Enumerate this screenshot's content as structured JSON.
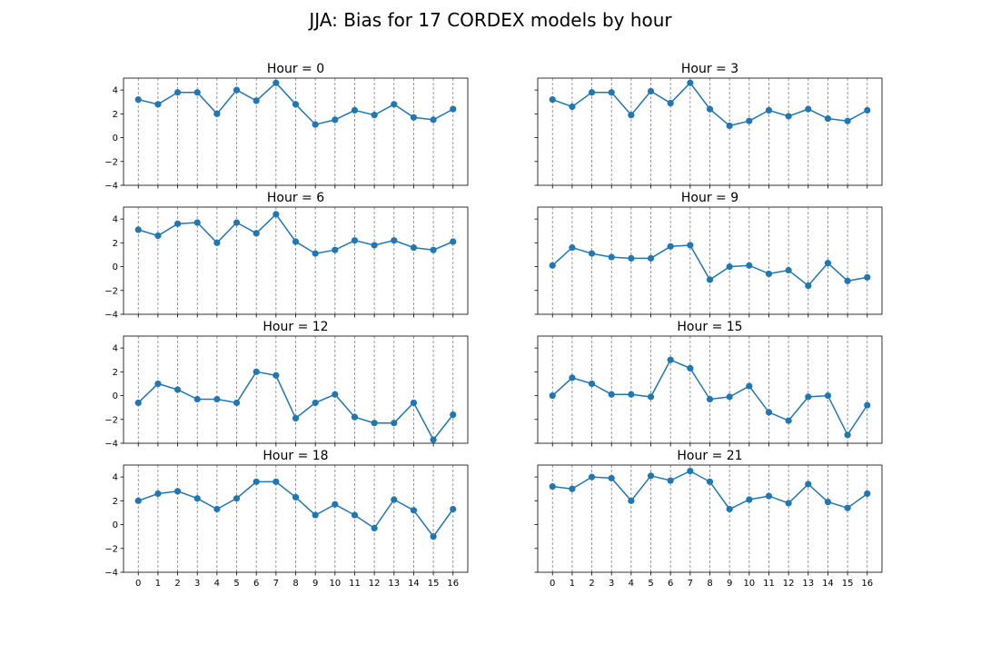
{
  "figure": {
    "title": "JJA: Bias for 17 CORDEX models by hour"
  },
  "chart_data": [
    {
      "type": "line",
      "title": "Hour = 0",
      "x": [
        0,
        1,
        2,
        3,
        4,
        5,
        6,
        7,
        8,
        9,
        10,
        11,
        12,
        13,
        14,
        15,
        16
      ],
      "y": [
        3.2,
        2.8,
        3.8,
        3.8,
        2.0,
        4.0,
        3.1,
        4.6,
        2.8,
        1.1,
        1.5,
        2.3,
        1.9,
        2.8,
        1.7,
        1.5,
        2.4
      ],
      "ylim": [
        -4,
        5
      ],
      "yticks": [
        -4,
        -2,
        0,
        2,
        4
      ],
      "grid": "x",
      "color": "#1f77b4"
    },
    {
      "type": "line",
      "title": "Hour = 3",
      "x": [
        0,
        1,
        2,
        3,
        4,
        5,
        6,
        7,
        8,
        9,
        10,
        11,
        12,
        13,
        14,
        15,
        16
      ],
      "y": [
        3.2,
        2.6,
        3.8,
        3.8,
        1.9,
        3.9,
        2.9,
        4.6,
        2.4,
        1.0,
        1.4,
        2.3,
        1.8,
        2.4,
        1.6,
        1.4,
        2.3
      ],
      "ylim": [
        -4,
        5
      ],
      "yticks": [
        -4,
        -2,
        0,
        2,
        4
      ],
      "grid": "x",
      "color": "#1f77b4"
    },
    {
      "type": "line",
      "title": "Hour = 6",
      "x": [
        0,
        1,
        2,
        3,
        4,
        5,
        6,
        7,
        8,
        9,
        10,
        11,
        12,
        13,
        14,
        15,
        16
      ],
      "y": [
        3.1,
        2.6,
        3.6,
        3.7,
        2.0,
        3.7,
        2.8,
        4.4,
        2.1,
        1.1,
        1.4,
        2.2,
        1.8,
        2.2,
        1.6,
        1.4,
        2.1
      ],
      "ylim": [
        -4,
        5
      ],
      "yticks": [
        -4,
        -2,
        0,
        2,
        4
      ],
      "grid": "x",
      "color": "#1f77b4"
    },
    {
      "type": "line",
      "title": "Hour = 9",
      "x": [
        0,
        1,
        2,
        3,
        4,
        5,
        6,
        7,
        8,
        9,
        10,
        11,
        12,
        13,
        14,
        15,
        16
      ],
      "y": [
        0.1,
        1.6,
        1.1,
        0.8,
        0.7,
        0.7,
        1.7,
        1.8,
        -1.1,
        0.0,
        0.1,
        -0.6,
        -0.3,
        -1.6,
        0.3,
        -1.2,
        -0.9
      ],
      "ylim": [
        -4,
        5
      ],
      "yticks": [
        -4,
        -2,
        0,
        2,
        4
      ],
      "grid": "x",
      "color": "#1f77b4"
    },
    {
      "type": "line",
      "title": "Hour = 12",
      "x": [
        0,
        1,
        2,
        3,
        4,
        5,
        6,
        7,
        8,
        9,
        10,
        11,
        12,
        13,
        14,
        15,
        16
      ],
      "y": [
        -0.6,
        1.0,
        0.5,
        -0.3,
        -0.3,
        -0.6,
        2.0,
        1.7,
        -1.9,
        -0.6,
        0.1,
        -1.8,
        -2.3,
        -2.3,
        -0.6,
        -3.7,
        -1.6
      ],
      "ylim": [
        -4,
        5
      ],
      "yticks": [
        -4,
        -2,
        0,
        2,
        4
      ],
      "grid": "x",
      "color": "#1f77b4"
    },
    {
      "type": "line",
      "title": "Hour = 15",
      "x": [
        0,
        1,
        2,
        3,
        4,
        5,
        6,
        7,
        8,
        9,
        10,
        11,
        12,
        13,
        14,
        15,
        16
      ],
      "y": [
        0.0,
        1.5,
        1.0,
        0.1,
        0.1,
        -0.1,
        3.0,
        2.3,
        -0.3,
        -0.1,
        0.8,
        -1.4,
        -2.1,
        -0.1,
        0.0,
        -3.3,
        -0.8
      ],
      "ylim": [
        -4,
        5
      ],
      "yticks": [
        -4,
        -2,
        0,
        2,
        4
      ],
      "grid": "x",
      "color": "#1f77b4"
    },
    {
      "type": "line",
      "title": "Hour = 18",
      "x": [
        0,
        1,
        2,
        3,
        4,
        5,
        6,
        7,
        8,
        9,
        10,
        11,
        12,
        13,
        14,
        15,
        16
      ],
      "y": [
        2.0,
        2.6,
        2.8,
        2.2,
        1.3,
        2.2,
        3.6,
        3.6,
        2.3,
        0.8,
        1.7,
        0.8,
        -0.3,
        2.1,
        1.2,
        -1.0,
        1.3
      ],
      "ylim": [
        -4,
        5
      ],
      "yticks": [
        -4,
        -2,
        0,
        2,
        4
      ],
      "grid": "x",
      "color": "#1f77b4"
    },
    {
      "type": "line",
      "title": "Hour = 21",
      "x": [
        0,
        1,
        2,
        3,
        4,
        5,
        6,
        7,
        8,
        9,
        10,
        11,
        12,
        13,
        14,
        15,
        16
      ],
      "y": [
        3.2,
        3.0,
        4.0,
        3.9,
        2.0,
        4.1,
        3.7,
        4.5,
        3.6,
        1.3,
        2.1,
        2.4,
        1.8,
        3.4,
        1.9,
        1.4,
        2.6
      ],
      "ylim": [
        -4,
        5
      ],
      "yticks": [
        -4,
        -2,
        0,
        2,
        4
      ],
      "grid": "x",
      "color": "#1f77b4"
    }
  ]
}
